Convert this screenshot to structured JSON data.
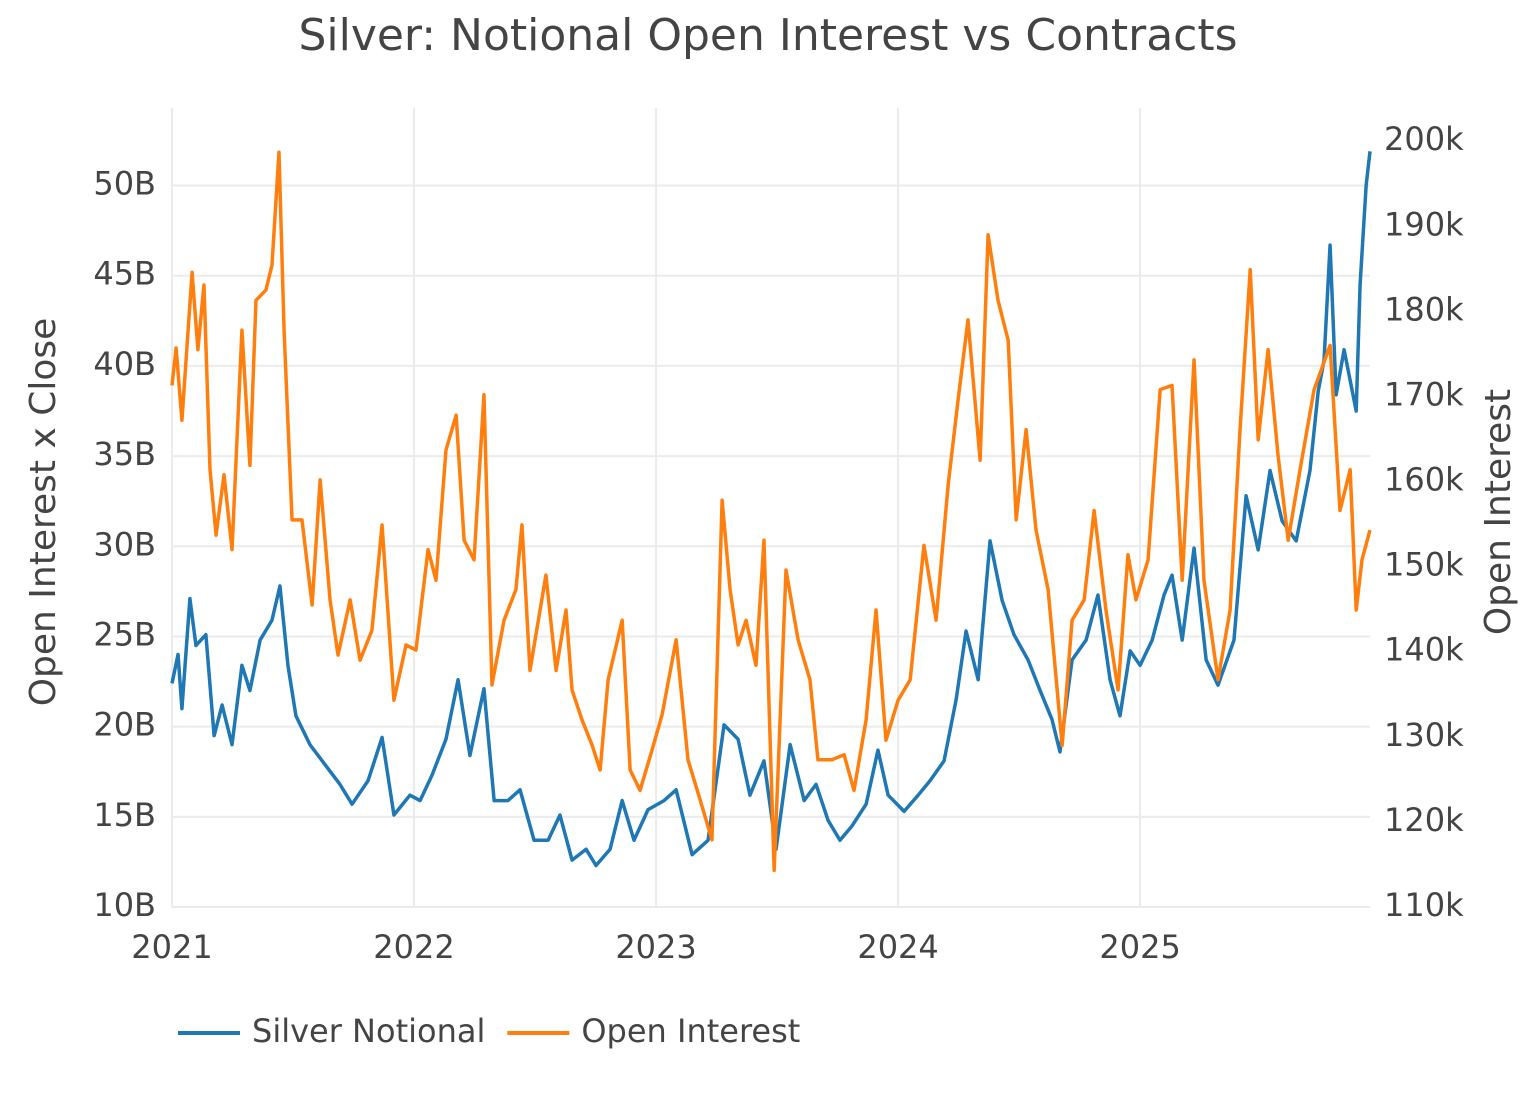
{
  "chart_data": {
    "type": "line",
    "title": "Silver: Notional Open Interest vs Contracts",
    "y_label": "Open Interest x Close",
    "y2_label": "Open Interest",
    "xlim": [
      2021,
      2025.95
    ],
    "xticks": [
      2021,
      2022,
      2023,
      2024,
      2025
    ],
    "ylim": [
      10,
      54.3
    ],
    "yticks": [
      {
        "value": 10,
        "label": "10B"
      },
      {
        "value": 15,
        "label": "15B"
      },
      {
        "value": 20,
        "label": "20B"
      },
      {
        "value": 25,
        "label": "25B"
      },
      {
        "value": 30,
        "label": "30B"
      },
      {
        "value": 35,
        "label": "35B"
      },
      {
        "value": 40,
        "label": "40B"
      },
      {
        "value": 45,
        "label": "45B"
      },
      {
        "value": 50,
        "label": "50B"
      }
    ],
    "y2lim": [
      110,
      203.9
    ],
    "y2ticks": [
      {
        "value": 110,
        "label": "110k"
      },
      {
        "value": 120,
        "label": "120k"
      },
      {
        "value": 130,
        "label": "130k"
      },
      {
        "value": 140,
        "label": "140k"
      },
      {
        "value": 150,
        "label": "150k"
      },
      {
        "value": 160,
        "label": "160k"
      },
      {
        "value": 170,
        "label": "170k"
      },
      {
        "value": 180,
        "label": "180k"
      },
      {
        "value": 190,
        "label": "190k"
      },
      {
        "value": 200,
        "label": "200k"
      }
    ],
    "grid": true,
    "series": [
      {
        "name": "Silver Notional",
        "color": "#1f77b4",
        "axis": "y",
        "x": [
          2021.0,
          2021.025,
          2021.041,
          2021.074,
          2021.099,
          2021.14,
          2021.174,
          2021.207,
          2021.248,
          2021.289,
          2021.322,
          2021.364,
          2021.413,
          2021.446,
          2021.479,
          2021.512,
          2021.57,
          2021.632,
          2021.694,
          2021.744,
          2021.81,
          2021.868,
          2021.917,
          2021.983,
          2022.025,
          2022.074,
          2022.132,
          2022.182,
          2022.231,
          2022.289,
          2022.331,
          2022.388,
          2022.438,
          2022.496,
          2022.554,
          2022.603,
          2022.653,
          2022.711,
          2022.752,
          2022.81,
          2022.86,
          2022.909,
          2022.967,
          2023.033,
          2023.083,
          2023.149,
          2023.215,
          2023.281,
          2023.339,
          2023.388,
          2023.446,
          2023.496,
          2023.554,
          2023.612,
          2023.661,
          2023.711,
          2023.76,
          2023.81,
          2023.868,
          2023.917,
          2023.959,
          2024.025,
          2024.083,
          2024.132,
          2024.19,
          2024.24,
          2024.281,
          2024.331,
          2024.38,
          2024.43,
          2024.479,
          2024.537,
          2024.587,
          2024.636,
          2024.669,
          2024.719,
          2024.777,
          2024.826,
          2024.876,
          2024.917,
          2024.959,
          2025.0,
          2025.05,
          2025.099,
          2025.132,
          2025.174,
          2025.223,
          2025.273,
          2025.322,
          2025.388,
          2025.438,
          2025.488,
          2025.537,
          2025.587,
          2025.645,
          2025.702,
          2025.736,
          2025.76,
          2025.785,
          2025.81,
          2025.843,
          2025.868,
          2025.893,
          2025.909,
          2025.934,
          2025.95
        ],
        "values": [
          22.4,
          24.0,
          21.0,
          27.1,
          24.5,
          25.1,
          19.5,
          21.2,
          19.0,
          23.4,
          22.0,
          24.8,
          25.9,
          27.8,
          23.4,
          20.6,
          19.0,
          17.9,
          16.8,
          15.7,
          17.0,
          19.4,
          15.1,
          16.2,
          15.9,
          17.3,
          19.3,
          22.6,
          18.4,
          22.1,
          15.9,
          15.9,
          16.5,
          13.7,
          13.7,
          15.1,
          12.6,
          13.2,
          12.3,
          13.2,
          15.9,
          13.7,
          15.4,
          15.9,
          16.5,
          12.9,
          13.7,
          20.1,
          19.3,
          16.2,
          18.1,
          13.2,
          19.0,
          15.9,
          16.8,
          14.8,
          13.7,
          14.5,
          15.7,
          18.7,
          16.2,
          15.3,
          16.2,
          17.0,
          18.1,
          21.5,
          25.3,
          22.6,
          30.3,
          27.0,
          25.1,
          23.7,
          22.0,
          20.4,
          18.6,
          23.7,
          24.8,
          27.3,
          22.6,
          20.6,
          24.2,
          23.4,
          24.8,
          27.3,
          28.4,
          24.8,
          29.9,
          23.7,
          22.3,
          24.8,
          32.8,
          29.8,
          34.2,
          31.4,
          30.3,
          34.2,
          38.6,
          40.3,
          46.7,
          38.4,
          40.9,
          39.2,
          37.5,
          44.5,
          50.0,
          51.9
        ]
      },
      {
        "name": "Open Interest",
        "color": "#ff7f0e",
        "axis": "y2",
        "x": [
          2021.0,
          2021.017,
          2021.041,
          2021.083,
          2021.107,
          2021.132,
          2021.157,
          2021.182,
          2021.215,
          2021.248,
          2021.289,
          2021.322,
          2021.347,
          2021.388,
          2021.413,
          2021.442,
          2021.463,
          2021.496,
          2021.537,
          2021.579,
          2021.612,
          2021.653,
          2021.686,
          2021.736,
          2021.777,
          2021.826,
          2021.868,
          2021.917,
          2021.967,
          2022.008,
          2022.058,
          2022.091,
          2022.132,
          2022.174,
          2022.207,
          2022.248,
          2022.289,
          2022.322,
          2022.372,
          2022.421,
          2022.446,
          2022.479,
          2022.545,
          2022.587,
          2022.628,
          2022.653,
          2022.694,
          2022.736,
          2022.769,
          2022.802,
          2022.86,
          2022.893,
          2022.934,
          2022.983,
          2023.025,
          2023.083,
          2023.132,
          2023.182,
          2023.231,
          2023.273,
          2023.306,
          2023.339,
          2023.372,
          2023.413,
          2023.446,
          2023.488,
          2023.537,
          2023.587,
          2023.636,
          2023.669,
          2023.727,
          2023.777,
          2023.818,
          2023.868,
          2023.909,
          2023.95,
          2024.0,
          2024.05,
          2024.107,
          2024.157,
          2024.207,
          2024.248,
          2024.289,
          2024.339,
          2024.372,
          2024.413,
          2024.455,
          2024.488,
          2024.529,
          2024.57,
          2024.62,
          2024.678,
          2024.719,
          2024.769,
          2024.81,
          2024.859,
          2024.909,
          2024.95,
          2024.983,
          2025.033,
          2025.083,
          2025.132,
          2025.174,
          2025.223,
          2025.264,
          2025.322,
          2025.372,
          2025.413,
          2025.455,
          2025.488,
          2025.529,
          2025.57,
          2025.612,
          2025.661,
          2025.719,
          2025.785,
          2025.826,
          2025.868,
          2025.893,
          2025.917,
          2025.95
        ],
        "values": [
          171.3,
          175.7,
          167.2,
          184.6,
          175.5,
          183.1,
          161.4,
          153.7,
          160.8,
          152.0,
          177.8,
          161.9,
          181.3,
          182.5,
          185.4,
          198.7,
          177.8,
          155.5,
          155.5,
          145.5,
          160.2,
          146.1,
          139.6,
          146.1,
          139.0,
          142.5,
          154.9,
          134.3,
          140.8,
          140.2,
          152.0,
          148.4,
          163.7,
          167.8,
          153.1,
          150.8,
          170.2,
          136.1,
          143.7,
          147.3,
          154.9,
          137.8,
          149.0,
          137.8,
          144.9,
          135.5,
          132.0,
          129.0,
          126.1,
          136.7,
          143.7,
          126.1,
          123.7,
          128.4,
          132.6,
          141.4,
          127.3,
          122.6,
          117.9,
          157.8,
          147.3,
          140.8,
          143.7,
          138.4,
          153.1,
          114.3,
          149.6,
          141.4,
          136.7,
          127.3,
          127.3,
          127.9,
          123.7,
          132.0,
          144.9,
          129.6,
          134.3,
          136.7,
          152.5,
          143.7,
          159.6,
          169.6,
          179.0,
          162.5,
          189.0,
          181.3,
          176.6,
          155.5,
          166.1,
          154.3,
          147.3,
          129.0,
          143.7,
          146.1,
          156.6,
          144.9,
          135.5,
          151.4,
          146.1,
          150.8,
          170.8,
          171.3,
          148.4,
          174.3,
          148.4,
          136.7,
          144.9,
          166.1,
          184.9,
          164.9,
          175.5,
          163.1,
          153.1,
          161.4,
          170.8,
          176.0,
          156.6,
          161.4,
          144.9,
          150.8,
          154.3
        ]
      }
    ]
  }
}
